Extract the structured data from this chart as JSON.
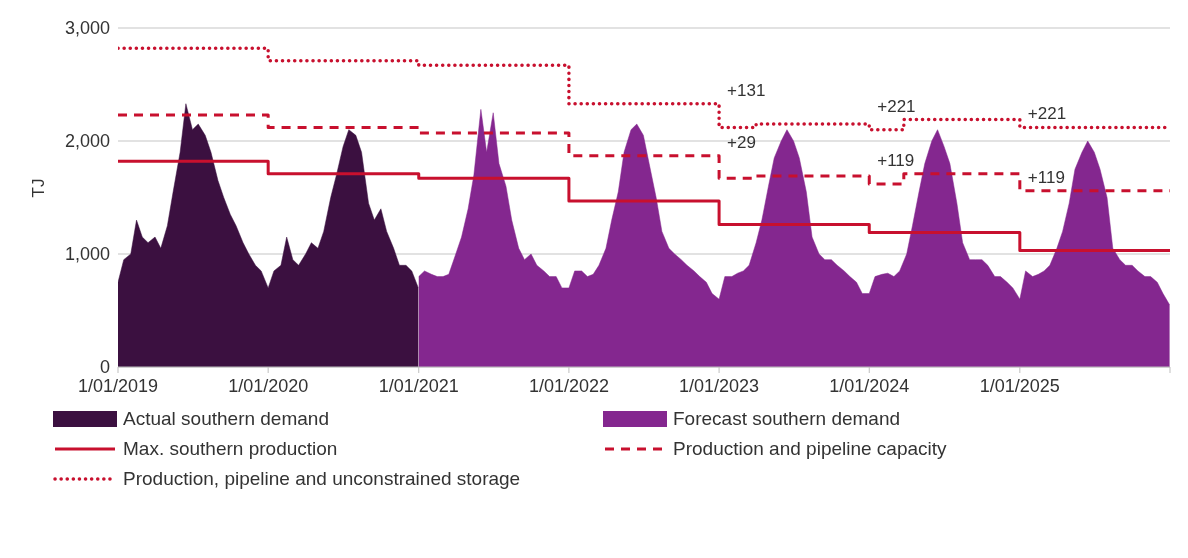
{
  "chart_data": {
    "type": "area",
    "ylabel": "TJ",
    "xlim": [
      "2019-01-01",
      "2026-01-01"
    ],
    "xticks": [
      {
        "value": "2019-01-01",
        "label": "1/01/2019"
      },
      {
        "value": "2020-01-01",
        "label": "1/01/2020"
      },
      {
        "value": "2021-01-01",
        "label": "1/01/2021"
      },
      {
        "value": "2022-01-01",
        "label": "1/01/2022"
      },
      {
        "value": "2023-01-01",
        "label": "1/01/2023"
      },
      {
        "value": "2024-01-01",
        "label": "1/01/2024"
      },
      {
        "value": "2025-01-01",
        "label": "1/01/2025"
      },
      {
        "value": "2026-01-01",
        "label": null
      }
    ],
    "ylim": [
      0,
      3000
    ],
    "yticks": [
      0,
      {
        "value": 1000,
        "label": "1,000"
      },
      {
        "value": 2000,
        "label": "2,000"
      },
      {
        "value": 3000,
        "label": "3,000"
      }
    ],
    "grid": "y",
    "legend": "bottom",
    "series": [
      {
        "name": "Actual southern demand",
        "color": "#3b1040",
        "x": [
          "2019-01-01",
          "2019-01-15",
          "2019-02-01",
          "2019-02-15",
          "2019-03-01",
          "2019-03-15",
          "2019-04-01",
          "2019-04-15",
          "2019-05-01",
          "2019-05-15",
          "2019-06-01",
          "2019-06-15",
          "2019-07-01",
          "2019-07-15",
          "2019-08-01",
          "2019-08-15",
          "2019-09-01",
          "2019-09-15",
          "2019-10-01",
          "2019-10-15",
          "2019-11-01",
          "2019-11-15",
          "2019-12-01",
          "2019-12-15",
          "2020-01-01",
          "2020-01-15",
          "2020-02-01",
          "2020-02-15",
          "2020-03-01",
          "2020-03-15",
          "2020-04-01",
          "2020-04-15",
          "2020-05-01",
          "2020-05-15",
          "2020-06-01",
          "2020-06-15",
          "2020-07-01",
          "2020-07-15",
          "2020-08-01",
          "2020-08-15",
          "2020-09-01",
          "2020-09-15",
          "2020-10-01",
          "2020-10-15",
          "2020-11-01",
          "2020-11-15",
          "2020-12-01",
          "2020-12-15",
          "2020-12-31"
        ],
        "values": [
          750,
          950,
          1000,
          1300,
          1150,
          1100,
          1150,
          1050,
          1250,
          1550,
          1900,
          2330,
          2100,
          2150,
          2050,
          1900,
          1650,
          1500,
          1350,
          1250,
          1100,
          1000,
          900,
          850,
          700,
          850,
          900,
          1150,
          950,
          900,
          1000,
          1100,
          1050,
          1200,
          1500,
          1700,
          1950,
          2100,
          2050,
          1900,
          1450,
          1300,
          1400,
          1200,
          1050,
          900,
          900,
          850,
          700
        ]
      },
      {
        "name": "Forecast southern demand",
        "color": "#84278f",
        "x": [
          "2021-01-01",
          "2021-01-15",
          "2021-02-01",
          "2021-02-15",
          "2021-03-01",
          "2021-03-15",
          "2021-04-01",
          "2021-04-15",
          "2021-05-01",
          "2021-05-15",
          "2021-06-01",
          "2021-06-15",
          "2021-07-01",
          "2021-07-15",
          "2021-08-01",
          "2021-08-15",
          "2021-09-01",
          "2021-09-15",
          "2021-10-01",
          "2021-10-15",
          "2021-11-01",
          "2021-11-15",
          "2021-12-01",
          "2021-12-15",
          "2022-01-01",
          "2022-01-15",
          "2022-02-01",
          "2022-02-15",
          "2022-03-01",
          "2022-03-15",
          "2022-04-01",
          "2022-04-15",
          "2022-05-01",
          "2022-05-15",
          "2022-06-01",
          "2022-06-15",
          "2022-07-01",
          "2022-07-15",
          "2022-08-01",
          "2022-08-15",
          "2022-09-01",
          "2022-09-15",
          "2022-10-01",
          "2022-10-15",
          "2022-11-01",
          "2022-11-15",
          "2022-12-01",
          "2022-12-15",
          "2023-01-01",
          "2023-01-15",
          "2023-02-01",
          "2023-02-15",
          "2023-03-01",
          "2023-03-15",
          "2023-04-01",
          "2023-04-15",
          "2023-05-01",
          "2023-05-15",
          "2023-06-01",
          "2023-06-15",
          "2023-07-01",
          "2023-07-15",
          "2023-08-01",
          "2023-08-15",
          "2023-09-01",
          "2023-09-15",
          "2023-10-01",
          "2023-10-15",
          "2023-11-01",
          "2023-11-15",
          "2023-12-01",
          "2023-12-15",
          "2024-01-01",
          "2024-01-15",
          "2024-02-01",
          "2024-02-15",
          "2024-03-01",
          "2024-03-15",
          "2024-04-01",
          "2024-04-15",
          "2024-05-01",
          "2024-05-15",
          "2024-06-01",
          "2024-06-15",
          "2024-07-01",
          "2024-07-15",
          "2024-08-01",
          "2024-08-15",
          "2024-09-01",
          "2024-09-15",
          "2024-10-01",
          "2024-10-15",
          "2024-11-01",
          "2024-11-15",
          "2024-12-01",
          "2024-12-15",
          "2025-01-01",
          "2025-01-15",
          "2025-02-01",
          "2025-02-15",
          "2025-03-01",
          "2025-03-15",
          "2025-04-01",
          "2025-04-15",
          "2025-05-01",
          "2025-05-15",
          "2025-06-01",
          "2025-06-15",
          "2025-07-01",
          "2025-07-15",
          "2025-08-01",
          "2025-08-15",
          "2025-09-01",
          "2025-09-15",
          "2025-10-01",
          "2025-10-15",
          "2025-11-01",
          "2025-11-15",
          "2025-12-01",
          "2025-12-15",
          "2025-12-31"
        ],
        "values": [
          800,
          850,
          820,
          800,
          800,
          820,
          1000,
          1150,
          1400,
          1700,
          2280,
          1900,
          2250,
          1800,
          1600,
          1300,
          1050,
          950,
          1000,
          900,
          850,
          800,
          800,
          700,
          700,
          850,
          850,
          800,
          820,
          900,
          1050,
          1300,
          1550,
          1900,
          2100,
          2150,
          2050,
          1800,
          1500,
          1200,
          1050,
          1000,
          950,
          900,
          850,
          800,
          750,
          650,
          600,
          800,
          800,
          830,
          850,
          900,
          1100,
          1300,
          1600,
          1850,
          2000,
          2100,
          2000,
          1850,
          1550,
          1150,
          1000,
          950,
          950,
          900,
          850,
          800,
          750,
          650,
          650,
          800,
          820,
          830,
          800,
          850,
          1000,
          1250,
          1550,
          1800,
          2000,
          2100,
          1950,
          1800,
          1450,
          1100,
          950,
          950,
          950,
          900,
          800,
          800,
          750,
          700,
          600,
          850,
          800,
          820,
          850,
          900,
          1050,
          1200,
          1450,
          1750,
          1900,
          2000,
          1900,
          1750,
          1500,
          1050,
          950,
          900,
          900,
          850,
          800,
          800,
          750,
          650,
          550
        ]
      },
      {
        "name": "Max. southern production",
        "type": "step",
        "line_style": "solid",
        "color": "#c8102e",
        "x": [
          "2019-01-01",
          "2020-01-01",
          "2021-01-01",
          "2022-01-01",
          "2023-01-01",
          "2023-04-01",
          "2024-01-01",
          "2024-03-25",
          "2025-01-01",
          "2026-01-01"
        ],
        "values": [
          1820,
          1710,
          1670,
          1470,
          1260,
          1260,
          1190,
          1190,
          1030,
          1030
        ]
      },
      {
        "name": "Production and pipeline capacity",
        "type": "step",
        "line_style": "dashed",
        "color": "#c8102e",
        "x": [
          "2019-01-01",
          "2020-01-01",
          "2021-01-01",
          "2022-01-01",
          "2023-01-01",
          "2023-04-01",
          "2024-01-01",
          "2024-03-25",
          "2025-01-01",
          "2026-01-01"
        ],
        "values": [
          2230,
          2120,
          2070,
          1870,
          1670,
          1690,
          1620,
          1710,
          1560,
          1560
        ]
      },
      {
        "name": "Production, pipeline and unconstrained storage",
        "type": "step",
        "line_style": "dotted",
        "color": "#c8102e",
        "x": [
          "2019-01-01",
          "2020-01-01",
          "2021-01-01",
          "2022-01-01",
          "2023-01-01",
          "2023-04-01",
          "2024-01-01",
          "2024-03-25",
          "2025-01-01",
          "2026-01-01"
        ],
        "values": [
          2820,
          2710,
          2670,
          2330,
          2120,
          2150,
          2100,
          2190,
          2120,
          2120
        ]
      }
    ],
    "annotations": [
      {
        "text": "+131",
        "x": "2023-01-01",
        "y": 2330
      },
      {
        "text": "+29",
        "x": "2023-01-01",
        "y": 1870
      },
      {
        "text": "+221",
        "x": "2024-01-01",
        "y": 2190
      },
      {
        "text": "+119",
        "x": "2024-01-01",
        "y": 1710
      },
      {
        "text": "+221",
        "x": "2025-01-01",
        "y": 2120
      },
      {
        "text": "+119",
        "x": "2025-01-01",
        "y": 1560
      }
    ]
  }
}
